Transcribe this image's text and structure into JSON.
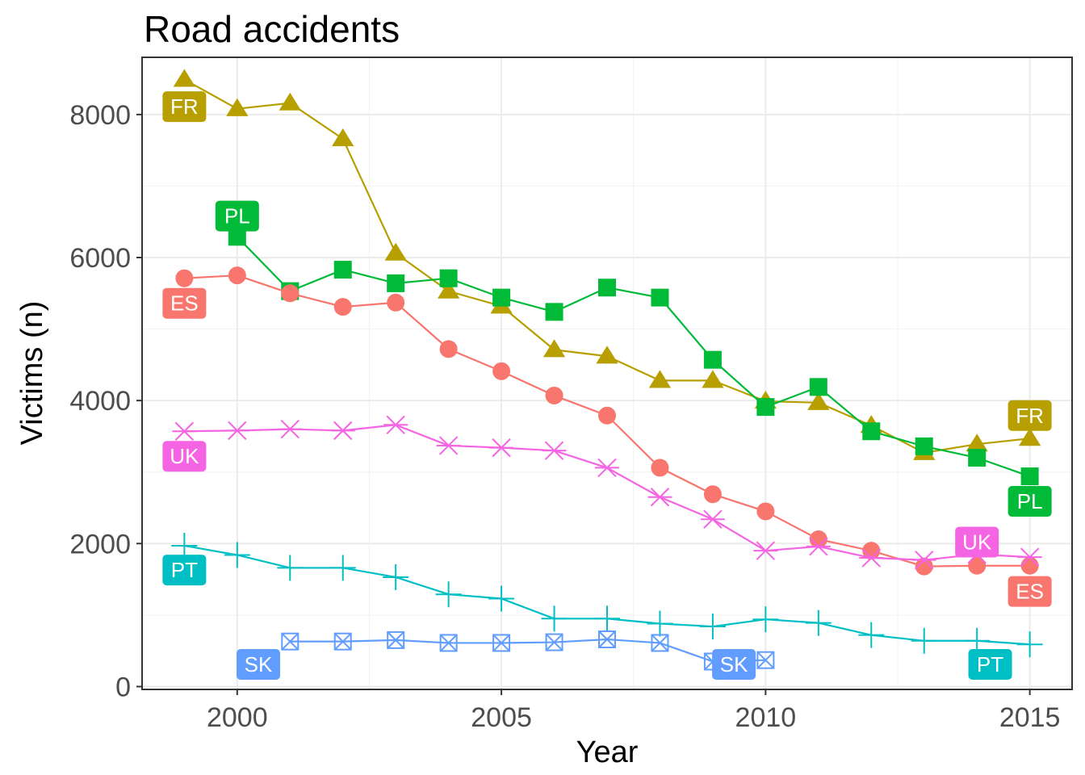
{
  "chart_data": {
    "type": "line",
    "title": "Road accidents",
    "xlabel": "Year",
    "ylabel": "Victims (n)",
    "xlim": [
      1998.2,
      2015.8
    ],
    "ylim": [
      -40,
      8800
    ],
    "x_ticks": [
      2000,
      2005,
      2010,
      2015
    ],
    "y_ticks": [
      0,
      2000,
      4000,
      6000,
      8000
    ],
    "grid": true,
    "legend": "none (direct labels at line ends)",
    "series": [
      {
        "name": "FR",
        "color": "#B79F00",
        "marker": "triangle",
        "points": [
          [
            1999,
            8490
          ],
          [
            2000,
            8080
          ],
          [
            2001,
            8160
          ],
          [
            2002,
            7660
          ],
          [
            2003,
            6060
          ],
          [
            2004,
            5530
          ],
          [
            2005,
            5320
          ],
          [
            2006,
            4710
          ],
          [
            2007,
            4620
          ],
          [
            2008,
            4280
          ],
          [
            2009,
            4280
          ],
          [
            2010,
            3990
          ],
          [
            2011,
            3970
          ],
          [
            2012,
            3650
          ],
          [
            2013,
            3270
          ],
          [
            2014,
            3390
          ],
          [
            2015,
            3470
          ]
        ],
        "labels": [
          {
            "text": "FR",
            "x": 1999,
            "y": 8110
          },
          {
            "text": "FR",
            "x": 2015,
            "y": 3790
          }
        ]
      },
      {
        "name": "PL",
        "color": "#00BA38",
        "marker": "square",
        "points": [
          [
            2000,
            6290
          ],
          [
            2001,
            5530
          ],
          [
            2002,
            5830
          ],
          [
            2003,
            5640
          ],
          [
            2004,
            5710
          ],
          [
            2005,
            5440
          ],
          [
            2006,
            5240
          ],
          [
            2007,
            5580
          ],
          [
            2008,
            5440
          ],
          [
            2009,
            4570
          ],
          [
            2010,
            3910
          ],
          [
            2011,
            4190
          ],
          [
            2012,
            3570
          ],
          [
            2013,
            3360
          ],
          [
            2014,
            3200
          ],
          [
            2015,
            2940
          ]
        ],
        "labels": [
          {
            "text": "PL",
            "x": 2000,
            "y": 6580
          },
          {
            "text": "PL",
            "x": 2015,
            "y": 2590
          }
        ]
      },
      {
        "name": "ES",
        "color": "#F8766D",
        "marker": "circle",
        "points": [
          [
            1999,
            5710
          ],
          [
            2000,
            5750
          ],
          [
            2001,
            5500
          ],
          [
            2002,
            5310
          ],
          [
            2003,
            5370
          ],
          [
            2004,
            4720
          ],
          [
            2005,
            4410
          ],
          [
            2006,
            4070
          ],
          [
            2007,
            3790
          ],
          [
            2008,
            3060
          ],
          [
            2009,
            2690
          ],
          [
            2010,
            2450
          ],
          [
            2011,
            2060
          ],
          [
            2012,
            1900
          ],
          [
            2013,
            1680
          ],
          [
            2014,
            1690
          ],
          [
            2015,
            1690
          ]
        ],
        "labels": [
          {
            "text": "ES",
            "x": 1999,
            "y": 5360
          },
          {
            "text": "ES",
            "x": 2015,
            "y": 1330
          }
        ]
      },
      {
        "name": "UK",
        "color": "#F564E3",
        "marker": "asterisk",
        "points": [
          [
            1999,
            3570
          ],
          [
            2000,
            3580
          ],
          [
            2001,
            3600
          ],
          [
            2002,
            3580
          ],
          [
            2003,
            3660
          ],
          [
            2004,
            3370
          ],
          [
            2005,
            3340
          ],
          [
            2006,
            3300
          ],
          [
            2007,
            3060
          ],
          [
            2008,
            2650
          ],
          [
            2009,
            2340
          ],
          [
            2010,
            1900
          ],
          [
            2011,
            1960
          ],
          [
            2012,
            1800
          ],
          [
            2013,
            1770
          ],
          [
            2014,
            1850
          ],
          [
            2015,
            1810
          ]
        ],
        "labels": [
          {
            "text": "UK",
            "x": 1999,
            "y": 3220
          },
          {
            "text": "UK",
            "x": 2014,
            "y": 2020
          }
        ]
      },
      {
        "name": "PT",
        "color": "#00BFC4",
        "marker": "plus",
        "points": [
          [
            1999,
            1970
          ],
          [
            2000,
            1840
          ],
          [
            2001,
            1660
          ],
          [
            2002,
            1660
          ],
          [
            2003,
            1530
          ],
          [
            2004,
            1290
          ],
          [
            2005,
            1230
          ],
          [
            2006,
            950
          ],
          [
            2007,
            950
          ],
          [
            2008,
            880
          ],
          [
            2009,
            840
          ],
          [
            2010,
            940
          ],
          [
            2011,
            890
          ],
          [
            2012,
            720
          ],
          [
            2013,
            640
          ],
          [
            2014,
            640
          ],
          [
            2015,
            590
          ]
        ],
        "labels": [
          {
            "text": "PT",
            "x": 1999,
            "y": 1630
          },
          {
            "text": "PT",
            "x": 2014.25,
            "y": 310
          }
        ]
      },
      {
        "name": "SK",
        "color": "#619CFF",
        "marker": "square-cross",
        "points": [
          [
            2001,
            630
          ],
          [
            2002,
            630
          ],
          [
            2003,
            650
          ],
          [
            2004,
            610
          ],
          [
            2005,
            610
          ],
          [
            2006,
            620
          ],
          [
            2007,
            660
          ],
          [
            2008,
            610
          ],
          [
            2009,
            350
          ],
          [
            2010,
            370
          ]
        ],
        "labels": [
          {
            "text": "SK",
            "x": 2000.4,
            "y": 310
          },
          {
            "text": "SK",
            "x": 2009.4,
            "y": 310
          }
        ]
      }
    ]
  }
}
